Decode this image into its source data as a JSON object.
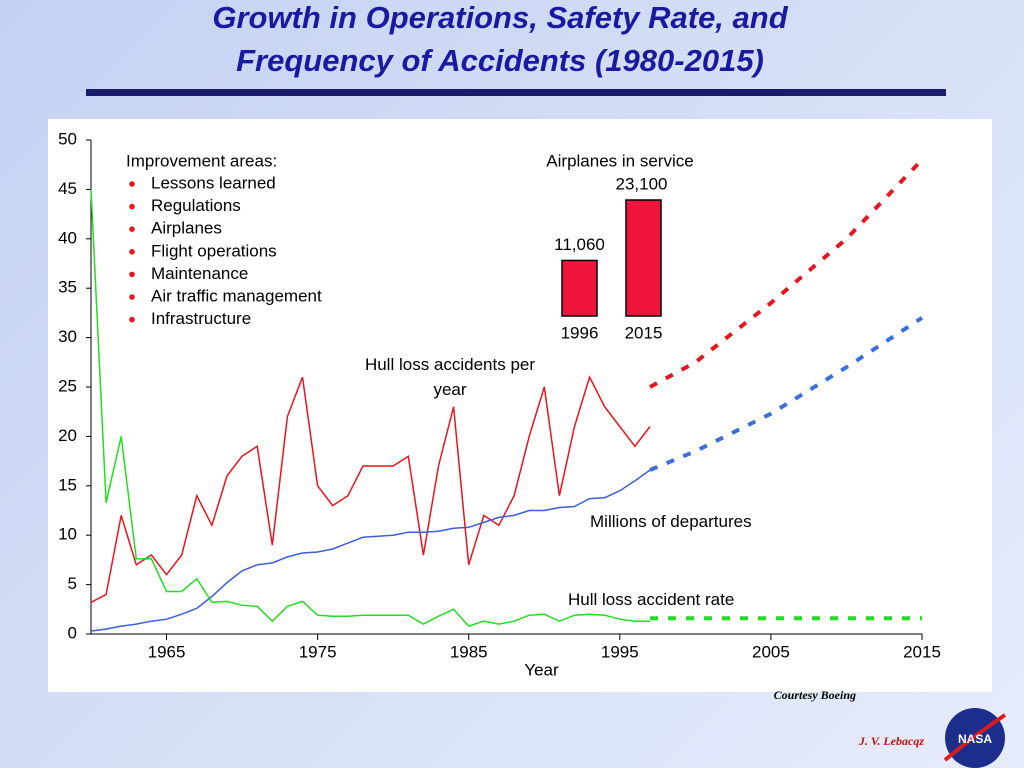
{
  "slide": {
    "title": [
      "Growth in Operations, Safety Rate, and",
      "Frequency of Accidents (1980-2015)"
    ],
    "credit": "Courtesy Boeing",
    "author": "J. V. Lebacqz",
    "logo": "NASA"
  },
  "chart_data": {
    "type": "line",
    "xlabel": "Year",
    "xlim": [
      1960,
      2015
    ],
    "xticks": [
      1965,
      1975,
      1985,
      1995,
      2005,
      2015
    ],
    "ylim": [
      0,
      50
    ],
    "yticks": [
      0,
      5,
      10,
      15,
      20,
      25,
      30,
      35,
      40,
      45,
      50
    ],
    "series": [
      {
        "name": "Hull loss accidents per year",
        "color": "#e8141e",
        "x": [
          1960,
          1961,
          1962,
          1963,
          1964,
          1965,
          1966,
          1967,
          1968,
          1969,
          1970,
          1971,
          1972,
          1973,
          1974,
          1975,
          1976,
          1977,
          1978,
          1979,
          1980,
          1981,
          1982,
          1983,
          1984,
          1985,
          1986,
          1987,
          1988,
          1989,
          1990,
          1991,
          1992,
          1993,
          1994,
          1995,
          1996,
          1997
        ],
        "values": [
          3.2,
          4,
          12,
          7,
          8,
          6,
          8,
          14,
          11,
          16,
          18,
          19,
          9,
          22,
          26,
          15,
          13,
          14,
          17,
          17,
          17,
          18,
          8,
          17,
          23,
          7,
          12,
          11,
          14,
          20,
          25,
          14,
          21,
          26,
          23,
          21,
          19,
          21
        ]
      },
      {
        "name": "Millions of departures",
        "color": "#3a5fd6",
        "x": [
          1960,
          1961,
          1962,
          1963,
          1964,
          1965,
          1966,
          1967,
          1968,
          1969,
          1970,
          1971,
          1972,
          1973,
          1974,
          1975,
          1976,
          1977,
          1978,
          1979,
          1980,
          1981,
          1982,
          1983,
          1984,
          1985,
          1986,
          1987,
          1988,
          1989,
          1990,
          1991,
          1992,
          1993,
          1994,
          1995,
          1996,
          1997
        ],
        "values": [
          0.3,
          0.5,
          0.8,
          1.0,
          1.3,
          1.5,
          2.0,
          2.6,
          3.8,
          5.2,
          6.4,
          7.0,
          7.2,
          7.8,
          8.2,
          8.3,
          8.6,
          9.2,
          9.8,
          9.9,
          10.0,
          10.3,
          10.3,
          10.4,
          10.7,
          10.8,
          11.3,
          11.8,
          12.0,
          12.5,
          12.5,
          12.8,
          12.9,
          13.7,
          13.8,
          14.5,
          15.5,
          16.6
        ]
      },
      {
        "name": "Hull loss accident rate",
        "color": "#22dd22",
        "x": [
          1960,
          1961,
          1962,
          1963,
          1964,
          1965,
          1966,
          1967,
          1968,
          1969,
          1970,
          1971,
          1972,
          1973,
          1974,
          1975,
          1976,
          1977,
          1978,
          1979,
          1980,
          1981,
          1982,
          1983,
          1984,
          1985,
          1986,
          1987,
          1988,
          1989,
          1990,
          1991,
          1992,
          1993,
          1994,
          1995,
          1996,
          1997
        ],
        "values": [
          45,
          13.3,
          20,
          7.6,
          7.6,
          4.3,
          4.3,
          5.6,
          3.2,
          3.3,
          2.9,
          2.8,
          1.3,
          2.8,
          3.3,
          1.9,
          1.8,
          1.8,
          1.9,
          1.9,
          1.9,
          1.9,
          1.0,
          1.8,
          2.5,
          0.8,
          1.3,
          1.0,
          1.3,
          1.9,
          2.0,
          1.3,
          1.9,
          2.0,
          1.9,
          1.5,
          1.3,
          1.3
        ]
      },
      {
        "color": "#e8141e",
        "dashed": true,
        "x": [
          1997,
          2000,
          2005,
          2010,
          2015
        ],
        "values": [
          25,
          27.5,
          33.5,
          40,
          48
        ]
      },
      {
        "color": "#3a6fe0",
        "dashed": true,
        "x": [
          1997,
          2000,
          2005,
          2010,
          2015
        ],
        "values": [
          16.6,
          18.5,
          22.3,
          27,
          32
        ]
      },
      {
        "color": "#22dd22",
        "dashed": true,
        "x": [
          1997,
          2015
        ],
        "values": [
          1.6,
          1.6
        ]
      }
    ],
    "improvement_heading": "Improvement areas:",
    "improvement_items": [
      "Lessons learned",
      "Regulations",
      "Airplanes",
      "Flight operations",
      "Maintenance",
      "Air traffic management",
      "Infrastructure"
    ],
    "bullet_color": "#e8141e",
    "inset": {
      "title": "Airplanes in service",
      "categories": [
        "1996",
        "2015"
      ],
      "values": [
        11060,
        23100
      ],
      "value_labels": [
        "11,060",
        "23,100"
      ],
      "color": "#f0143c"
    }
  }
}
